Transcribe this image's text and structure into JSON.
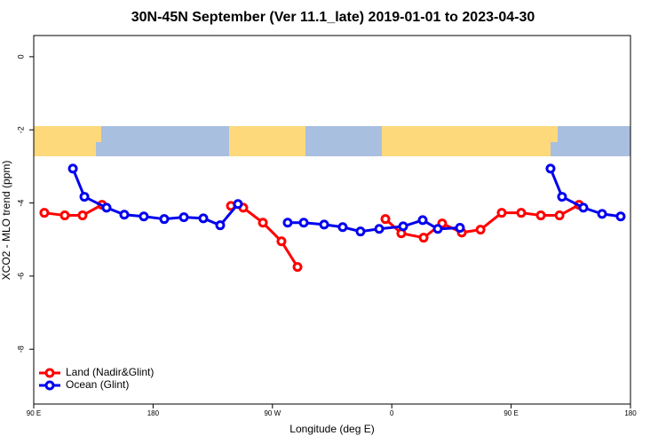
{
  "chart_data": {
    "type": "line",
    "title": "30N-45N September (Ver 11.1_late)   2019-01-01 to 2023-04-30",
    "xlabel": "Longitude (deg E)",
    "ylabel": "XCO2 - MLO trend (ppm)",
    "xlim": [
      90,
      540
    ],
    "ylim": [
      -9.5,
      0.58
    ],
    "xticks": [
      {
        "value": 90,
        "label": "90 E"
      },
      {
        "value": 180,
        "label": "180"
      },
      {
        "value": 270,
        "label": "90 W"
      },
      {
        "value": 360,
        "label": "0"
      },
      {
        "value": 450,
        "label": "90 E"
      },
      {
        "value": 540,
        "label": "180"
      }
    ],
    "yticks": [
      -8,
      -6,
      -4,
      -2,
      0
    ],
    "legend": "bottom-left",
    "series": [
      {
        "name": "Land (Nadir&Glint)",
        "color": "#ff0000",
        "x": [
          98.0,
          113.4,
          126.8,
          141.5,
          null,
          238.7,
          248.0,
          262.8,
          276.8,
          288.9,
          null,
          355.2,
          367.2,
          384.0,
          398.0,
          412.8,
          426.9,
          442.9,
          457.6,
          472.4,
          486.5,
          501.2
        ],
        "values": [
          -4.27,
          -4.34,
          -4.34,
          -4.05,
          null,
          -4.08,
          -4.13,
          -4.54,
          -5.05,
          -5.75,
          null,
          -4.44,
          -4.83,
          -4.95,
          -4.56,
          -4.81,
          -4.73,
          -4.27,
          -4.27,
          -4.34,
          -4.34,
          -4.05
        ]
      },
      {
        "name": "Ocean (Glint)",
        "color": "#0000ee",
        "x": [
          119.5,
          128.2,
          144.9,
          158.3,
          173.0,
          188.4,
          203.2,
          217.9,
          230.6,
          244.0,
          null,
          281.5,
          293.6,
          309.0,
          323.0,
          336.4,
          350.5,
          368.6,
          383.3,
          394.7,
          411.4,
          null,
          479.7,
          488.4,
          504.5,
          518.6,
          532.6
        ],
        "values": [
          -3.06,
          -3.83,
          -4.13,
          -4.32,
          -4.37,
          -4.44,
          -4.39,
          -4.42,
          -4.61,
          -4.03,
          null,
          -4.54,
          -4.54,
          -4.59,
          -4.66,
          -4.78,
          -4.71,
          -4.64,
          -4.47,
          -4.71,
          -4.68,
          null,
          -3.06,
          -3.83,
          -4.13,
          -4.3,
          -4.37
        ]
      }
    ]
  }
}
